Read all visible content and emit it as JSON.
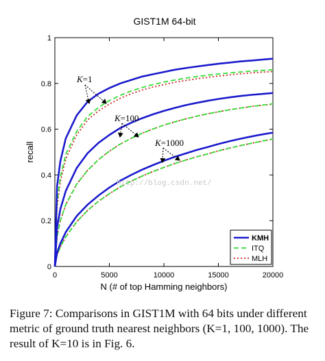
{
  "chart_data": {
    "type": "line",
    "title": "GIST1M  64-bit",
    "xlabel": "N (# of top Hamming neighbors)",
    "ylabel": "recall",
    "xlim": [
      0,
      20000
    ],
    "ylim": [
      0,
      1
    ],
    "xticks": [
      "0",
      "5000",
      "10000",
      "15000",
      "20000"
    ],
    "yticks": [
      "0",
      "0.2",
      "0.4",
      "0.6",
      "0.8",
      "1"
    ],
    "legend": {
      "placement": "bottom-right",
      "entries": [
        {
          "name": "KMH",
          "color": "#1a1acc",
          "style": "solid"
        },
        {
          "name": "ITQ",
          "color": "#33dd33",
          "style": "dashed"
        },
        {
          "name": "MLH",
          "color": "#cc2222",
          "style": "dotted"
        }
      ]
    },
    "annotations": [
      {
        "text": "K=1",
        "k": "K",
        "v": "=1"
      },
      {
        "text": "K=100",
        "k": "K",
        "v": "=100"
      },
      {
        "text": "K=1000",
        "k": "K",
        "v": "=1000"
      }
    ],
    "x": [
      0,
      200,
      500,
      1000,
      2000,
      3000,
      4000,
      5000,
      6000,
      7000,
      8000,
      9000,
      10000,
      11000,
      12000,
      13000,
      14000,
      15000,
      16000,
      17000,
      18000,
      19000,
      20000
    ],
    "groups": [
      {
        "label": "K=1",
        "series": [
          {
            "name": "KMH",
            "values": [
              0,
              0.35,
              0.46,
              0.56,
              0.66,
              0.72,
              0.755,
              0.78,
              0.8,
              0.815,
              0.83,
              0.84,
              0.85,
              0.86,
              0.867,
              0.874,
              0.88,
              0.886,
              0.891,
              0.896,
              0.9,
              0.904,
              0.908
            ]
          },
          {
            "name": "ITQ",
            "values": [
              0,
              0.28,
              0.39,
              0.49,
              0.59,
              0.655,
              0.695,
              0.725,
              0.748,
              0.767,
              0.782,
              0.795,
              0.806,
              0.815,
              0.823,
              0.83,
              0.836,
              0.841,
              0.846,
              0.85,
              0.854,
              0.857,
              0.86
            ]
          },
          {
            "name": "MLH",
            "values": [
              0,
              0.26,
              0.37,
              0.47,
              0.575,
              0.64,
              0.68,
              0.71,
              0.735,
              0.755,
              0.771,
              0.784,
              0.795,
              0.805,
              0.813,
              0.82,
              0.826,
              0.832,
              0.837,
              0.842,
              0.846,
              0.849,
              0.852
            ]
          }
        ]
      },
      {
        "label": "K=100",
        "series": [
          {
            "name": "KMH",
            "values": [
              0,
              0.17,
              0.25,
              0.33,
              0.43,
              0.495,
              0.54,
              0.575,
              0.605,
              0.628,
              0.648,
              0.665,
              0.68,
              0.693,
              0.705,
              0.715,
              0.724,
              0.732,
              0.739,
              0.745,
              0.75,
              0.754,
              0.758
            ]
          },
          {
            "name": "ITQ",
            "values": [
              0,
              0.13,
              0.2,
              0.27,
              0.36,
              0.42,
              0.467,
              0.504,
              0.535,
              0.56,
              0.582,
              0.601,
              0.618,
              0.632,
              0.645,
              0.657,
              0.667,
              0.676,
              0.685,
              0.692,
              0.699,
              0.705,
              0.711
            ]
          },
          {
            "name": "MLH",
            "values": [
              0,
              0.13,
              0.2,
              0.27,
              0.36,
              0.42,
              0.467,
              0.504,
              0.535,
              0.56,
              0.582,
              0.601,
              0.618,
              0.632,
              0.645,
              0.657,
              0.667,
              0.676,
              0.685,
              0.692,
              0.699,
              0.705,
              0.709
            ]
          }
        ]
      },
      {
        "label": "K=1000",
        "series": [
          {
            "name": "KMH",
            "values": [
              0,
              0.06,
              0.1,
              0.15,
              0.22,
              0.27,
              0.31,
              0.345,
              0.375,
              0.4,
              0.423,
              0.443,
              0.462,
              0.479,
              0.494,
              0.509,
              0.522,
              0.535,
              0.547,
              0.558,
              0.568,
              0.577,
              0.585
            ]
          },
          {
            "name": "ITQ",
            "values": [
              0,
              0.05,
              0.085,
              0.13,
              0.195,
              0.245,
              0.285,
              0.318,
              0.348,
              0.373,
              0.395,
              0.415,
              0.433,
              0.45,
              0.465,
              0.479,
              0.492,
              0.505,
              0.517,
              0.528,
              0.538,
              0.548,
              0.558
            ]
          },
          {
            "name": "MLH",
            "values": [
              0,
              0.05,
              0.085,
              0.13,
              0.195,
              0.245,
              0.285,
              0.318,
              0.348,
              0.373,
              0.395,
              0.415,
              0.433,
              0.45,
              0.465,
              0.479,
              0.492,
              0.505,
              0.517,
              0.528,
              0.538,
              0.548,
              0.556
            ]
          }
        ]
      }
    ]
  },
  "watermark": "http://blog.csdn.net/",
  "caption": "Figure 7: Comparisons in GIST1M with 64 bits under different metric of ground truth nearest neighbors (K=1, 100, 1000). The result of K=10 is in Fig. 6."
}
